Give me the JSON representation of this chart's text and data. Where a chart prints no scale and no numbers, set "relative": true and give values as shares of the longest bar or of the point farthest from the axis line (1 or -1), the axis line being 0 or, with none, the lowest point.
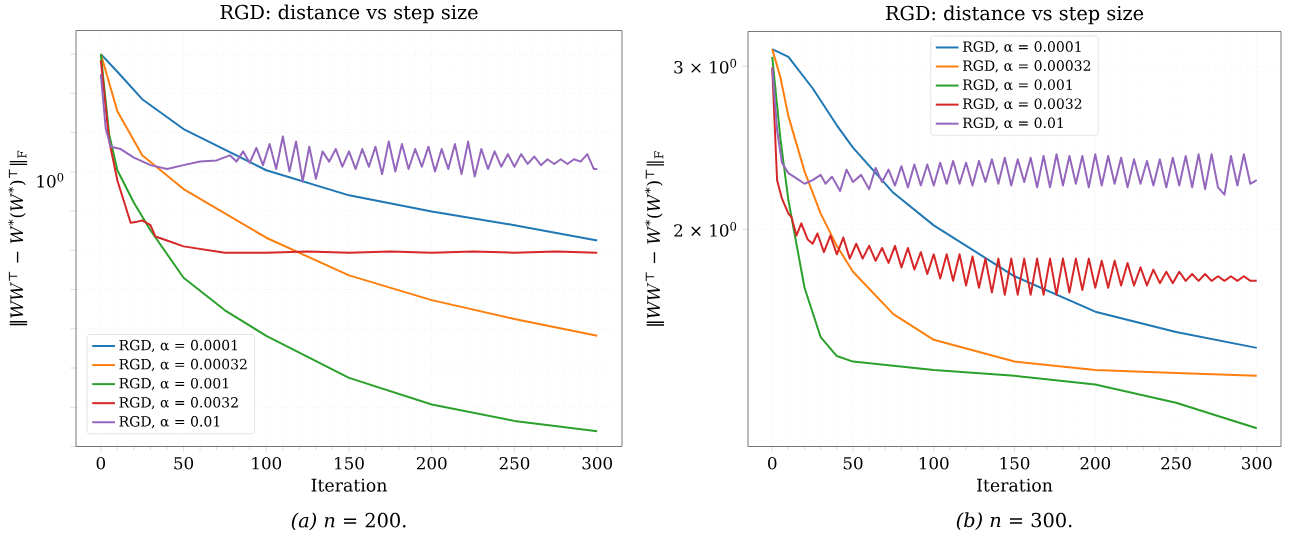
{
  "chart_data": [
    {
      "type": "line",
      "title": "RGD: distance vs step size",
      "xlabel": "Iteration",
      "ylabel": "‖*WW*$^{⊤}$ − *W*$^{*}$(*W*$^{*}$)$^{⊤}$‖$_{F}$",
      "relative": true,
      "grid": true,
      "legend": "bottom left",
      "marker": "none",
      "line_style": "solid",
      "xlim": [
        -15,
        315
      ],
      "xticks": [
        0,
        50,
        100,
        150,
        200,
        250,
        300
      ],
      "annotations": [
        "10$^{0}$",
        "*(a)* *n* = 200."
      ],
      "series": [
        {
          "name": "RGD, α = 0.0001",
          "color": "#1f77b4",
          "x": [
            0,
            10,
            25,
            50,
            100,
            150,
            200,
            250,
            300
          ],
          "values": [
            1,
            0.955,
            0.885,
            0.809,
            0.704,
            0.64,
            0.599,
            0.564,
            0.525
          ]
        },
        {
          "name": "RGD, α = 0.00032",
          "color": "#ff7f0e",
          "x": [
            0,
            10,
            25,
            50,
            100,
            150,
            200,
            250,
            300
          ],
          "values": [
            1,
            0.854,
            0.742,
            0.656,
            0.532,
            0.436,
            0.373,
            0.325,
            0.282
          ]
        },
        {
          "name": "RGD, α = 0.001",
          "color": "#2ca02c",
          "x": [
            0,
            5,
            10,
            20,
            30,
            50,
            75,
            100,
            150,
            200,
            250,
            300
          ],
          "values": [
            1,
            0.796,
            0.704,
            0.621,
            0.551,
            0.43,
            0.347,
            0.282,
            0.175,
            0.107,
            0.0653,
            0.0392
          ]
        },
        {
          "name": "RGD, α = 0.0032",
          "color": "#d62728",
          "x": [
            0,
            5,
            10,
            15,
            18,
            22,
            25,
            30,
            33,
            40,
            50,
            75,
            100,
            125,
            150,
            175,
            200,
            225,
            250,
            275,
            300
          ],
          "values": [
            0.984,
            0.78,
            0.678,
            0.611,
            0.57,
            0.573,
            0.576,
            0.564,
            0.535,
            0.525,
            0.51,
            0.494,
            0.494,
            0.497,
            0.494,
            0.497,
            0.494,
            0.497,
            0.494,
            0.497,
            0.494
          ]
        },
        {
          "name": "RGD, α = 0.01",
          "color": "#9467bd",
          "x": [
            0,
            3,
            6,
            12,
            20,
            30,
            40,
            50,
            60,
            70,
            78,
            82,
            86,
            90,
            94,
            98,
            102,
            106,
            110,
            114,
            118,
            122,
            126,
            130,
            134,
            138,
            142,
            146,
            150,
            154,
            158,
            162,
            166,
            170,
            174,
            178,
            182,
            186,
            190,
            194,
            198,
            202,
            206,
            210,
            214,
            218,
            222,
            226,
            230,
            234,
            238,
            242,
            246,
            250,
            254,
            258,
            262,
            266,
            270,
            274,
            278,
            282,
            286,
            290,
            294,
            298,
            300
          ],
          "values": [
            0.949,
            0.809,
            0.764,
            0.758,
            0.736,
            0.717,
            0.707,
            0.717,
            0.726,
            0.729,
            0.742,
            0.726,
            0.752,
            0.723,
            0.761,
            0.717,
            0.771,
            0.707,
            0.79,
            0.701,
            0.777,
            0.675,
            0.764,
            0.682,
            0.752,
            0.726,
            0.758,
            0.713,
            0.752,
            0.707,
            0.758,
            0.713,
            0.764,
            0.694,
            0.777,
            0.701,
            0.771,
            0.707,
            0.758,
            0.713,
            0.764,
            0.701,
            0.758,
            0.707,
            0.771,
            0.694,
            0.777,
            0.688,
            0.758,
            0.707,
            0.752,
            0.713,
            0.745,
            0.713,
            0.745,
            0.72,
            0.739,
            0.717,
            0.732,
            0.72,
            0.732,
            0.72,
            0.732,
            0.726,
            0.745,
            0.707,
            0.707
          ]
        }
      ]
    },
    {
      "type": "line",
      "title": "RGD: distance vs step size",
      "xlabel": "Iteration",
      "ylabel": "‖*WW*$^{⊤}$ − *W*$^{*}$(*W*$^{*}$)$^{⊤}$‖$_{F}$",
      "log": "y",
      "grid": true,
      "legend": "top",
      "marker": "none",
      "line_style": "solid",
      "xlim": [
        -15,
        315
      ],
      "ylim": [
        1.166,
        3.27
      ],
      "xticks": [
        0,
        50,
        100,
        150,
        200,
        250,
        300
      ],
      "yticks": [
        {
          "value": 2,
          "label": "2 × 10$^{0}$"
        },
        {
          "value": 3,
          "label": "3 × 10$^{0}$"
        }
      ],
      "annotations": [
        "*(b)* *n* = 300."
      ],
      "series": [
        {
          "name": "RGD, α = 0.0001",
          "color": "#1f77b4",
          "x": [
            0,
            10,
            25,
            40,
            50,
            75,
            100,
            150,
            200,
            250,
            300
          ],
          "values": [
            3.13,
            3.07,
            2.84,
            2.59,
            2.45,
            2.19,
            2.02,
            1.78,
            1.63,
            1.55,
            1.49
          ]
        },
        {
          "name": "RGD, α = 0.00032",
          "color": "#ff7f0e",
          "x": [
            0,
            5,
            10,
            20,
            30,
            40,
            50,
            75,
            100,
            150,
            200,
            250,
            300
          ],
          "values": [
            3.13,
            2.92,
            2.65,
            2.31,
            2.08,
            1.92,
            1.8,
            1.62,
            1.52,
            1.44,
            1.41,
            1.4,
            1.39
          ]
        },
        {
          "name": "RGD, α = 0.001",
          "color": "#2ca02c",
          "x": [
            0,
            5,
            10,
            20,
            30,
            40,
            50,
            100,
            150,
            200,
            250,
            300
          ],
          "values": [
            3.07,
            2.51,
            2.15,
            1.73,
            1.53,
            1.46,
            1.44,
            1.41,
            1.39,
            1.36,
            1.3,
            1.22
          ]
        },
        {
          "name": "RGD, α = 0.0032",
          "color": "#d62728",
          "x": [
            0,
            3,
            6,
            10,
            12,
            15,
            18,
            22,
            25,
            28,
            32,
            36,
            40,
            44,
            48,
            52,
            56,
            60,
            64,
            68,
            72,
            76,
            80,
            84,
            88,
            92,
            96,
            100,
            104,
            108,
            112,
            116,
            120,
            124,
            128,
            132,
            136,
            140,
            144,
            148,
            152,
            156,
            160,
            164,
            168,
            172,
            176,
            180,
            184,
            188,
            192,
            196,
            200,
            204,
            208,
            212,
            216,
            220,
            224,
            228,
            232,
            236,
            240,
            244,
            248,
            252,
            256,
            260,
            264,
            268,
            272,
            276,
            280,
            284,
            288,
            292,
            296,
            300
          ],
          "values": [
            2.99,
            2.26,
            2.16,
            2.08,
            2.06,
            1.97,
            2.03,
            1.95,
            1.93,
            1.98,
            1.89,
            1.97,
            1.88,
            1.96,
            1.86,
            1.93,
            1.86,
            1.92,
            1.85,
            1.91,
            1.84,
            1.92,
            1.82,
            1.91,
            1.81,
            1.89,
            1.79,
            1.88,
            1.77,
            1.88,
            1.76,
            1.88,
            1.74,
            1.87,
            1.73,
            1.86,
            1.71,
            1.86,
            1.7,
            1.86,
            1.7,
            1.86,
            1.7,
            1.86,
            1.7,
            1.86,
            1.7,
            1.86,
            1.71,
            1.86,
            1.72,
            1.86,
            1.73,
            1.85,
            1.73,
            1.85,
            1.74,
            1.84,
            1.74,
            1.82,
            1.74,
            1.81,
            1.75,
            1.8,
            1.75,
            1.8,
            1.76,
            1.79,
            1.76,
            1.79,
            1.76,
            1.78,
            1.76,
            1.78,
            1.76,
            1.78,
            1.76,
            1.76
          ]
        },
        {
          "name": "RGD, α = 0.01",
          "color": "#9467bd",
          "x": [
            0,
            3,
            6,
            10,
            15,
            20,
            25,
            30,
            33,
            37,
            42,
            46,
            50,
            55,
            60,
            64,
            68,
            72,
            76,
            80,
            84,
            88,
            92,
            96,
            100,
            104,
            108,
            112,
            116,
            120,
            124,
            128,
            132,
            136,
            140,
            144,
            148,
            152,
            156,
            160,
            164,
            168,
            172,
            176,
            180,
            184,
            188,
            192,
            196,
            200,
            204,
            208,
            212,
            216,
            220,
            224,
            228,
            232,
            236,
            240,
            244,
            248,
            252,
            256,
            260,
            264,
            268,
            272,
            276,
            280,
            284,
            288,
            292,
            296,
            300
          ],
          "values": [
            2.99,
            2.56,
            2.36,
            2.3,
            2.27,
            2.24,
            2.26,
            2.29,
            2.24,
            2.28,
            2.2,
            2.32,
            2.25,
            2.29,
            2.21,
            2.33,
            2.25,
            2.32,
            2.23,
            2.34,
            2.22,
            2.35,
            2.23,
            2.35,
            2.23,
            2.36,
            2.24,
            2.37,
            2.24,
            2.36,
            2.23,
            2.37,
            2.25,
            2.38,
            2.24,
            2.39,
            2.23,
            2.38,
            2.25,
            2.39,
            2.22,
            2.4,
            2.22,
            2.41,
            2.23,
            2.4,
            2.24,
            2.4,
            2.22,
            2.41,
            2.23,
            2.4,
            2.24,
            2.39,
            2.22,
            2.38,
            2.24,
            2.37,
            2.23,
            2.38,
            2.22,
            2.39,
            2.23,
            2.4,
            2.22,
            2.41,
            2.21,
            2.41,
            2.22,
            2.18,
            2.4,
            2.23,
            2.41,
            2.24,
            2.26
          ]
        }
      ]
    }
  ]
}
